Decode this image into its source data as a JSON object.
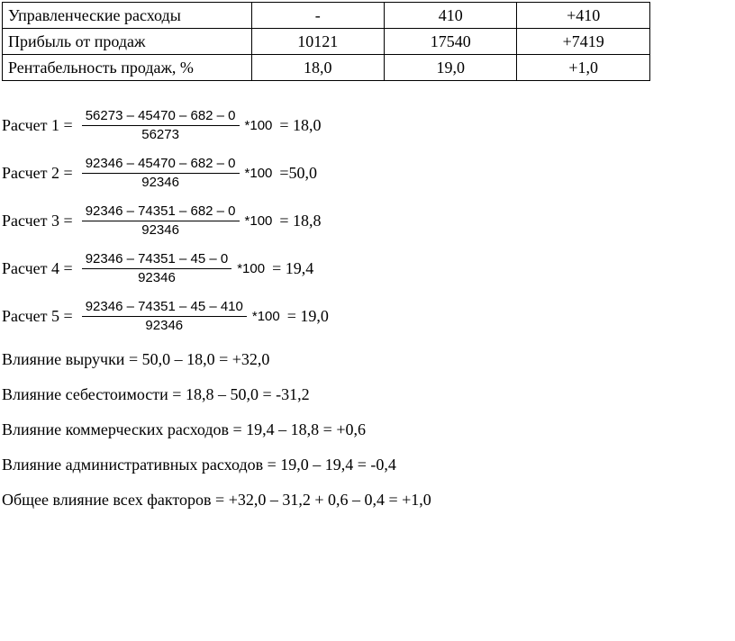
{
  "table": {
    "rows": [
      {
        "label": "Управленческие расходы",
        "v1": "-",
        "v2": "410",
        "v3": "+410"
      },
      {
        "label": "Прибыль от продаж",
        "v1": "10121",
        "v2": "17540",
        "v3": "+7419"
      },
      {
        "label": "Рентабельность продаж, %",
        "v1": "18,0",
        "v2": "19,0",
        "v3": "+1,0"
      }
    ]
  },
  "calcs": [
    {
      "label": "Расчет 1 = ",
      "num": "56273 – 45470 – 682 – 0",
      "den": "56273",
      "times": " *100",
      "result": " = 18,0"
    },
    {
      "label": "Расчет 2 = ",
      "num": "92346 – 45470 – 682 – 0",
      "den": "92346",
      "times": " *100",
      "result": " =50,0"
    },
    {
      "label": "Расчет 3 = ",
      "num": "92346 – 74351 – 682 – 0",
      "den": "92346",
      "times": " *100",
      "result": " = 18,8"
    },
    {
      "label": "Расчет 4 = ",
      "num": "92346 – 74351 – 45 – 0",
      "den": "92346",
      "times": " *100",
      "result": " = 19,4"
    },
    {
      "label": "Расчет 5 = ",
      "num": "92346 – 74351 – 45 – 410",
      "den": "92346",
      "times": " *100",
      "result": " = 19,0"
    }
  ],
  "lines": [
    "Влияние выручки = 50,0 – 18,0 = +32,0",
    "Влияние себестоимости = 18,8 – 50,0 = -31,2",
    "Влияние коммерческих расходов = 19,4 – 18,8 = +0,6",
    "Влияние административных расходов = 19,0 – 19,4 = -0,4",
    "Общее влияние всех факторов = +32,0 – 31,2 + 0,6 – 0,4 = +1,0"
  ]
}
